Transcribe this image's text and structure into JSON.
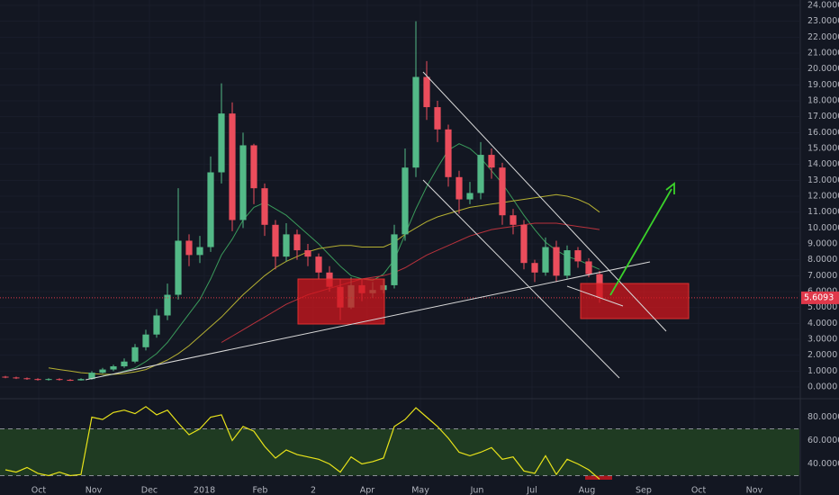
{
  "chart_data": [
    {
      "type": "candlestick",
      "open": [
        0.65,
        0.6,
        0.55,
        0.5,
        0.45,
        0.5,
        0.45,
        0.42,
        0.5,
        0.9,
        1.1,
        1.3,
        1.6,
        2.5,
        3.3,
        4.5,
        5.8,
        9.2,
        8.3,
        8.8,
        13.5,
        17.2,
        10.5,
        15.2,
        12.5,
        10.2,
        8.2,
        9.6,
        8.6,
        8.2,
        7.2,
        6.3,
        5.0,
        6.4,
        5.9,
        6.1,
        6.4,
        9.6,
        13.8,
        19.5,
        17.6,
        16.2,
        13.2,
        11.8,
        12.2,
        14.6,
        13.8,
        10.8,
        10.2,
        7.8,
        7.2,
        8.8,
        7.0,
        8.6,
        7.9,
        7.1
      ],
      "high": [
        0.7,
        0.65,
        0.6,
        0.55,
        0.55,
        0.55,
        0.5,
        0.55,
        1.0,
        1.2,
        1.4,
        1.8,
        2.7,
        3.6,
        4.9,
        6.5,
        12.5,
        9.6,
        9.5,
        14.5,
        19.1,
        17.9,
        16.0,
        15.3,
        12.8,
        10.5,
        10.3,
        9.9,
        9.0,
        8.4,
        7.6,
        6.8,
        6.9,
        6.8,
        6.6,
        6.8,
        10.2,
        15.0,
        23.0,
        20.5,
        18.0,
        16.5,
        13.6,
        12.9,
        15.4,
        15.0,
        14.1,
        11.2,
        10.5,
        8.0,
        9.4,
        9.2,
        8.9,
        8.8,
        8.1,
        7.3
      ],
      "low": [
        0.55,
        0.5,
        0.45,
        0.4,
        0.4,
        0.4,
        0.38,
        0.4,
        0.45,
        0.85,
        1.0,
        1.2,
        1.5,
        2.3,
        3.1,
        4.2,
        5.5,
        7.6,
        7.8,
        8.5,
        12.8,
        9.8,
        10.0,
        11.5,
        9.5,
        7.4,
        7.9,
        8.0,
        7.6,
        6.8,
        6.0,
        4.2,
        4.9,
        5.4,
        5.6,
        5.9,
        6.2,
        9.2,
        13.2,
        16.8,
        15.4,
        12.6,
        10.9,
        11.5,
        11.8,
        13.1,
        10.2,
        9.6,
        7.4,
        6.6,
        7.0,
        6.6,
        6.8,
        7.5,
        6.9,
        5.3
      ],
      "close": [
        0.6,
        0.55,
        0.5,
        0.45,
        0.5,
        0.45,
        0.42,
        0.5,
        0.9,
        1.1,
        1.3,
        1.6,
        2.5,
        3.3,
        4.5,
        5.8,
        9.2,
        8.3,
        8.8,
        13.5,
        17.2,
        10.5,
        15.2,
        12.5,
        10.2,
        8.2,
        9.6,
        8.6,
        8.2,
        7.2,
        6.3,
        5.0,
        6.4,
        5.9,
        6.1,
        6.4,
        9.6,
        13.8,
        19.5,
        17.6,
        16.2,
        13.2,
        11.8,
        12.2,
        14.6,
        13.8,
        10.8,
        10.2,
        7.8,
        7.2,
        8.8,
        7.0,
        8.6,
        7.9,
        7.1,
        5.6093
      ],
      "up_color": "#53b987",
      "down_color": "#eb4d5c",
      "lines": [
        {
          "color": "#3a9a5b",
          "values": [
            null,
            null,
            null,
            null,
            null,
            null,
            null,
            null,
            null,
            0.7,
            0.8,
            1.0,
            1.2,
            1.6,
            2.1,
            2.8,
            3.7,
            4.6,
            5.5,
            6.8,
            8.3,
            9.3,
            10.5,
            11.3,
            11.6,
            11.2,
            10.8,
            10.2,
            9.6,
            9.0,
            8.3,
            7.6,
            7.0,
            6.8,
            6.7,
            7.1,
            8.0,
            9.6,
            11.2,
            12.6,
            13.8,
            14.9,
            15.3,
            15.0,
            14.4,
            13.6,
            12.8,
            11.8,
            10.8,
            9.9,
            9.1,
            8.6,
            8.2,
            8.0,
            7.7,
            7.4
          ]
        },
        {
          "color": "#b5b032",
          "values": [
            null,
            null,
            null,
            null,
            1.2,
            1.1,
            1.0,
            0.9,
            0.85,
            0.8,
            0.8,
            0.85,
            0.95,
            1.1,
            1.4,
            1.7,
            2.1,
            2.6,
            3.2,
            3.8,
            4.4,
            5.1,
            5.8,
            6.4,
            7.0,
            7.5,
            7.9,
            8.2,
            8.5,
            8.7,
            8.8,
            8.9,
            8.9,
            8.8,
            8.8,
            8.8,
            9.1,
            9.6,
            10.0,
            10.4,
            10.7,
            10.9,
            11.1,
            11.3,
            11.4,
            11.5,
            11.6,
            11.7,
            11.8,
            11.9,
            12.0,
            12.1,
            12.0,
            11.8,
            11.5,
            11.0
          ]
        },
        {
          "color": "#b8323c",
          "values": [
            null,
            null,
            null,
            null,
            null,
            null,
            null,
            null,
            null,
            null,
            null,
            null,
            null,
            null,
            null,
            null,
            null,
            null,
            null,
            null,
            2.8,
            3.2,
            3.6,
            4.0,
            4.4,
            4.8,
            5.2,
            5.5,
            5.8,
            6.0,
            6.2,
            6.4,
            6.6,
            6.8,
            6.9,
            7.0,
            7.2,
            7.5,
            7.9,
            8.3,
            8.6,
            8.9,
            9.2,
            9.5,
            9.7,
            9.9,
            10.0,
            10.1,
            10.2,
            10.3,
            10.3,
            10.3,
            10.2,
            10.1,
            10.0,
            9.9
          ]
        }
      ],
      "last_price": {
        "value": 5.6093,
        "label": "5.6093",
        "color": "#e0384a"
      },
      "ylim": [
        0,
        24
      ],
      "yticks": [
        {
          "value": 0,
          "label": "0.0000"
        },
        {
          "value": 1,
          "label": "1.0000"
        },
        {
          "value": 2,
          "label": "2.0000"
        },
        {
          "value": 3,
          "label": "3.0000"
        },
        {
          "value": 4,
          "label": "4.0000"
        },
        {
          "value": 5,
          "label": "5.0000"
        },
        {
          "value": 6,
          "label": "6.0000"
        },
        {
          "value": 7,
          "label": "7.0000"
        },
        {
          "value": 8,
          "label": "8.0000"
        },
        {
          "value": 9,
          "label": "9.0000"
        },
        {
          "value": 10,
          "label": "10.0000"
        },
        {
          "value": 11,
          "label": "11.0000"
        },
        {
          "value": 12,
          "label": "12.0000"
        },
        {
          "value": 13,
          "label": "13.0000"
        },
        {
          "value": 14,
          "label": "14.0000"
        },
        {
          "value": 15,
          "label": "15.0000"
        },
        {
          "value": 16,
          "label": "16.0000"
        },
        {
          "value": 17,
          "label": "17.0000"
        },
        {
          "value": 18,
          "label": "18.0000"
        },
        {
          "value": 19,
          "label": "19.0000"
        },
        {
          "value": 20,
          "label": "20.0000"
        },
        {
          "value": 21,
          "label": "21.0000"
        },
        {
          "value": 22,
          "label": "22.0000"
        },
        {
          "value": 23,
          "label": "23.0000"
        },
        {
          "value": 24,
          "label": "24.0000"
        }
      ],
      "xlim": [
        0,
        74
      ],
      "xticks": [
        {
          "value": 3.58,
          "label": "Oct"
        },
        {
          "value": 8.67,
          "label": "Nov"
        },
        {
          "value": 13.83,
          "label": "Dec"
        },
        {
          "value": 18.92,
          "label": "2018"
        },
        {
          "value": 24.08,
          "label": "Feb"
        },
        {
          "value": 29,
          "label": "2"
        },
        {
          "value": 34,
          "label": "Apr"
        },
        {
          "value": 38.92,
          "label": "May"
        },
        {
          "value": 44.17,
          "label": "Jun"
        },
        {
          "value": 49.25,
          "label": "Jul"
        },
        {
          "value": 54.33,
          "label": "Aug"
        },
        {
          "value": 59.58,
          "label": "Sep"
        },
        {
          "value": 64.67,
          "label": "Oct"
        },
        {
          "value": 69.83,
          "label": "Nov"
        }
      ],
      "grid": true
    },
    {
      "type": "line",
      "values": [
        35,
        33,
        37,
        32,
        30,
        33,
        30,
        31,
        80,
        78,
        84,
        86,
        83,
        89,
        82,
        86,
        75,
        65,
        70,
        80,
        82,
        60,
        72,
        68,
        55,
        45,
        52,
        48,
        46,
        44,
        40,
        33,
        46,
        40,
        42,
        45,
        72,
        78,
        88,
        80,
        72,
        62,
        50,
        47,
        50,
        54,
        44,
        46,
        34,
        32,
        47,
        31,
        44,
        40,
        35,
        27
      ],
      "color": "#e8e31a",
      "band": [
        30,
        70
      ],
      "band_color": "#1f3b22",
      "ylim": [
        25,
        95
      ],
      "yticks": [
        {
          "value": 40,
          "label": "40.0000"
        },
        {
          "value": 60,
          "label": "60.0000"
        },
        {
          "value": 80,
          "label": "80.0000"
        }
      ]
    }
  ]
}
